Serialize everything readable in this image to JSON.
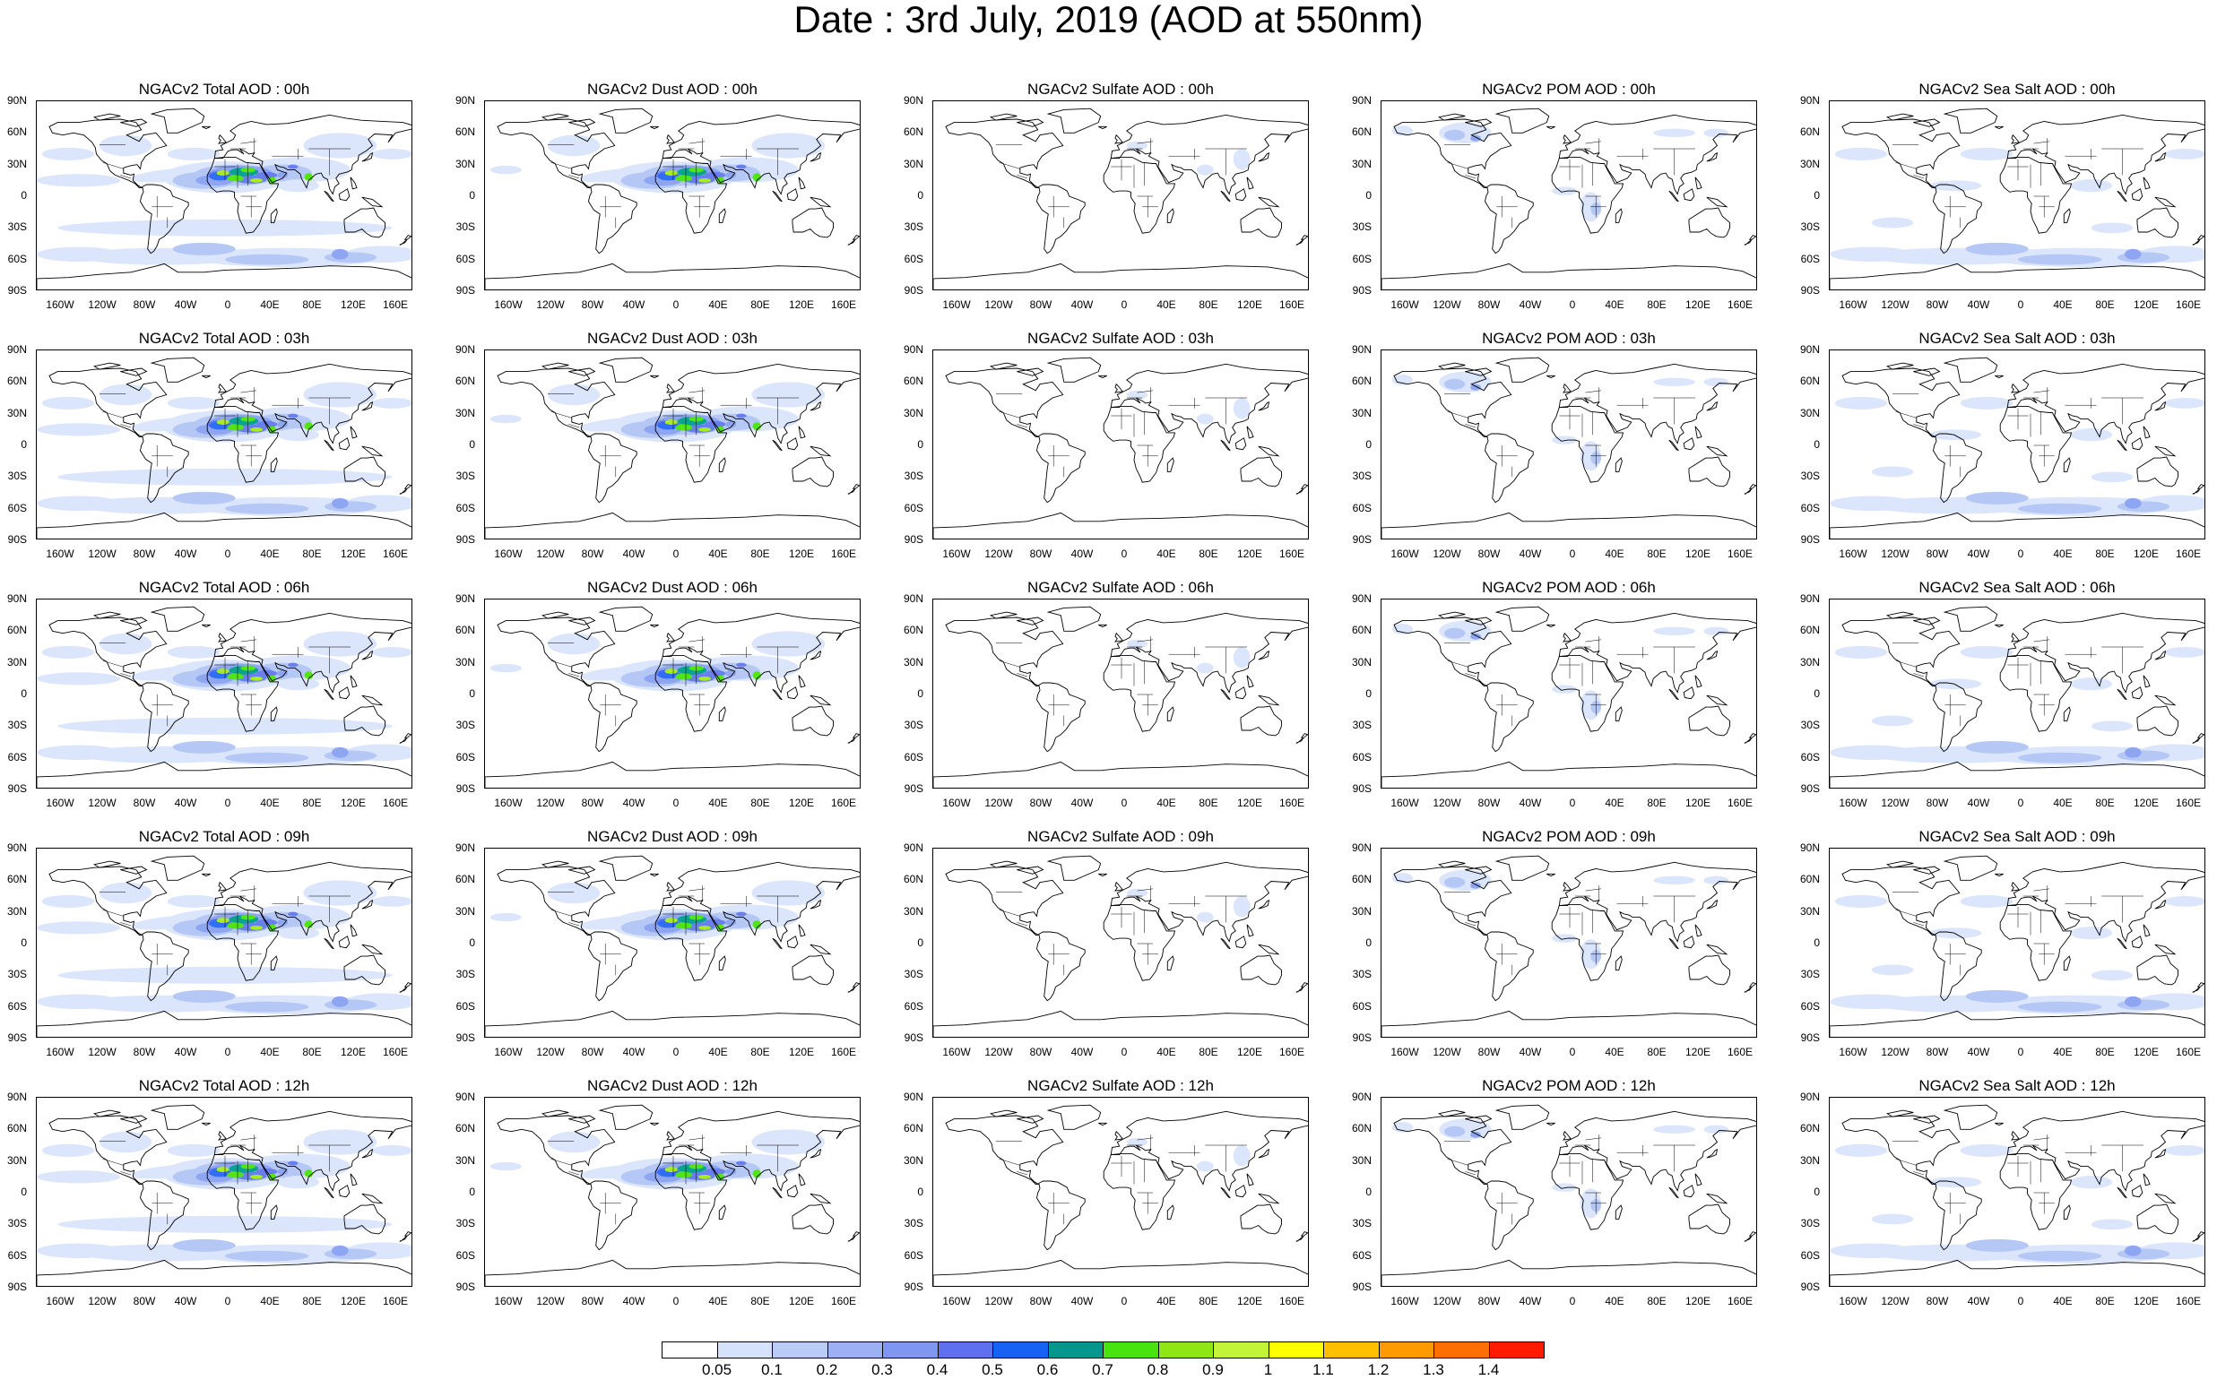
{
  "title": "Date : 3rd July, 2019 (AOD at 550nm)",
  "lat_labels": [
    "90N",
    "60N",
    "30N",
    "0",
    "30S",
    "60S",
    "90S"
  ],
  "lon_labels": [
    "160W",
    "120W",
    "80W",
    "40W",
    "0",
    "40E",
    "80E",
    "120E",
    "160E"
  ],
  "colorbar": {
    "labels": [
      "0.05",
      "0.1",
      "0.2",
      "0.3",
      "0.4",
      "0.5",
      "0.6",
      "0.7",
      "0.8",
      "0.9",
      "1",
      "1.1",
      "1.2",
      "1.3",
      "1.4"
    ],
    "colors": [
      "#ffffff",
      "#d6e2fb",
      "#b9cbf7",
      "#9cb1f2",
      "#7f97ef",
      "#5e6ff0",
      "#1762f5",
      "#04968f",
      "#49e30f",
      "#8ee615",
      "#c2f538",
      "#ffff00",
      "#ffc000",
      "#ff9a00",
      "#ff6e00",
      "#ff1a00"
    ]
  },
  "panels": [
    {
      "title": "NGACv2 Total AOD : 00h",
      "species": "total"
    },
    {
      "title": "NGACv2 Dust AOD : 00h",
      "species": "dust"
    },
    {
      "title": "NGACv2 Sulfate AOD : 00h",
      "species": "sulfate"
    },
    {
      "title": "NGACv2 POM AOD : 00h",
      "species": "pom"
    },
    {
      "title": "NGACv2 Sea Salt AOD : 00h",
      "species": "seasalt"
    },
    {
      "title": "NGACv2 Total AOD : 03h",
      "species": "total"
    },
    {
      "title": "NGACv2 Dust AOD : 03h",
      "species": "dust"
    },
    {
      "title": "NGACv2 Sulfate AOD : 03h",
      "species": "sulfate"
    },
    {
      "title": "NGACv2 POM AOD : 03h",
      "species": "pom"
    },
    {
      "title": "NGACv2 Sea Salt AOD : 03h",
      "species": "seasalt"
    },
    {
      "title": "NGACv2 Total AOD : 06h",
      "species": "total"
    },
    {
      "title": "NGACv2 Dust AOD : 06h",
      "species": "dust"
    },
    {
      "title": "NGACv2 Sulfate AOD : 06h",
      "species": "sulfate"
    },
    {
      "title": "NGACv2 POM AOD : 06h",
      "species": "pom"
    },
    {
      "title": "NGACv2 Sea Salt AOD : 06h",
      "species": "seasalt"
    },
    {
      "title": "NGACv2 Total AOD : 09h",
      "species": "total"
    },
    {
      "title": "NGACv2 Dust AOD : 09h",
      "species": "dust"
    },
    {
      "title": "NGACv2 Sulfate AOD : 09h",
      "species": "sulfate"
    },
    {
      "title": "NGACv2 POM AOD : 09h",
      "species": "pom"
    },
    {
      "title": "NGACv2 Sea Salt  AOD : 09h",
      "species": "seasalt"
    },
    {
      "title": "NGACv2 Total AOD  : 12h",
      "species": "total"
    },
    {
      "title": "NGACv2 Dust AOD : 12h",
      "species": "dust"
    },
    {
      "title": "NGACv2 Sulfate AOD : 12h",
      "species": "sulfate"
    },
    {
      "title": "NGACv2 POM  AOD : 12h",
      "species": "pom"
    },
    {
      "title": "NGACv2 Sea Salt AOD : 12h",
      "species": "seasalt"
    }
  ]
}
